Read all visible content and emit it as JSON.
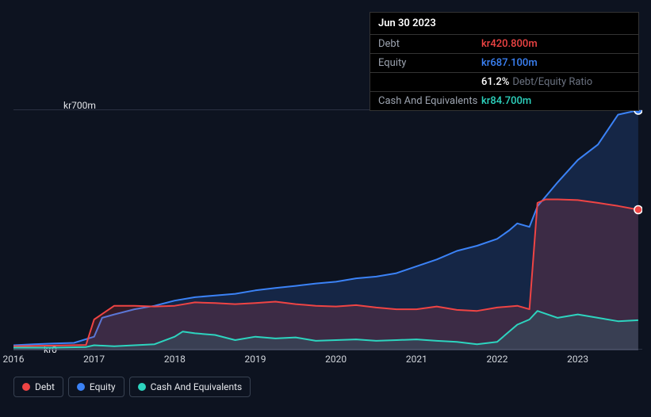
{
  "tooltip": {
    "date": "Jun 30 2023",
    "rows": [
      {
        "label": "Debt",
        "value": "kr420.800m",
        "color": "#ef4444"
      },
      {
        "label": "Equity",
        "value": "kr687.100m",
        "color": "#3b82f6"
      },
      {
        "label": "",
        "value": "61.2%",
        "extra": "Debt/Equity Ratio",
        "color": "#ffffff"
      },
      {
        "label": "Cash And Equivalents",
        "value": "kr84.700m",
        "color": "#2dd4bf"
      }
    ]
  },
  "chart": {
    "type": "area",
    "background": "#0d1320",
    "grid_color": "#2a3142",
    "y_axis": {
      "top_label": "kr700m",
      "bottom_label": "kr0",
      "min": 0,
      "max": 700
    },
    "x_axis": {
      "min": 2016,
      "max": 2023.8,
      "ticks": [
        "2016",
        "2017",
        "2018",
        "2019",
        "2020",
        "2021",
        "2022",
        "2023"
      ]
    },
    "series": [
      {
        "name": "Equity",
        "color": "#3b82f6",
        "fill": "rgba(59,130,246,0.18)",
        "z": 1,
        "data": [
          [
            2016.0,
            15
          ],
          [
            2016.25,
            18
          ],
          [
            2016.5,
            20
          ],
          [
            2016.75,
            22
          ],
          [
            2017.0,
            40
          ],
          [
            2017.1,
            95
          ],
          [
            2017.25,
            105
          ],
          [
            2017.5,
            120
          ],
          [
            2017.75,
            130
          ],
          [
            2018.0,
            145
          ],
          [
            2018.25,
            155
          ],
          [
            2018.5,
            160
          ],
          [
            2018.75,
            165
          ],
          [
            2019.0,
            175
          ],
          [
            2019.25,
            182
          ],
          [
            2019.5,
            188
          ],
          [
            2019.75,
            195
          ],
          [
            2020.0,
            200
          ],
          [
            2020.25,
            210
          ],
          [
            2020.5,
            215
          ],
          [
            2020.75,
            225
          ],
          [
            2021.0,
            245
          ],
          [
            2021.25,
            265
          ],
          [
            2021.5,
            290
          ],
          [
            2021.75,
            305
          ],
          [
            2022.0,
            325
          ],
          [
            2022.15,
            350
          ],
          [
            2022.25,
            370
          ],
          [
            2022.4,
            360
          ],
          [
            2022.5,
            420
          ],
          [
            2022.75,
            490
          ],
          [
            2023.0,
            555
          ],
          [
            2023.25,
            600
          ],
          [
            2023.5,
            687
          ],
          [
            2023.75,
            700
          ]
        ]
      },
      {
        "name": "Debt",
        "color": "#ef4444",
        "fill": "rgba(239,68,68,0.18)",
        "z": 2,
        "data": [
          [
            2016.0,
            12
          ],
          [
            2016.5,
            14
          ],
          [
            2016.9,
            16
          ],
          [
            2017.0,
            90
          ],
          [
            2017.25,
            130
          ],
          [
            2017.5,
            130
          ],
          [
            2017.75,
            128
          ],
          [
            2018.0,
            130
          ],
          [
            2018.25,
            140
          ],
          [
            2018.5,
            138
          ],
          [
            2018.75,
            135
          ],
          [
            2019.0,
            138
          ],
          [
            2019.25,
            142
          ],
          [
            2019.5,
            135
          ],
          [
            2019.75,
            130
          ],
          [
            2020.0,
            128
          ],
          [
            2020.25,
            132
          ],
          [
            2020.5,
            125
          ],
          [
            2020.75,
            120
          ],
          [
            2021.0,
            120
          ],
          [
            2021.25,
            128
          ],
          [
            2021.5,
            118
          ],
          [
            2021.75,
            115
          ],
          [
            2022.0,
            125
          ],
          [
            2022.25,
            130
          ],
          [
            2022.4,
            120
          ],
          [
            2022.5,
            430
          ],
          [
            2022.6,
            440
          ],
          [
            2022.75,
            440
          ],
          [
            2023.0,
            438
          ],
          [
            2023.25,
            430
          ],
          [
            2023.5,
            421
          ],
          [
            2023.75,
            410
          ]
        ]
      },
      {
        "name": "Cash And Equivalents",
        "color": "#2dd4bf",
        "fill": "rgba(45,212,191,0.12)",
        "z": 3,
        "data": [
          [
            2016.0,
            8
          ],
          [
            2016.5,
            8
          ],
          [
            2016.9,
            10
          ],
          [
            2017.0,
            15
          ],
          [
            2017.25,
            12
          ],
          [
            2017.5,
            15
          ],
          [
            2017.75,
            18
          ],
          [
            2018.0,
            40
          ],
          [
            2018.1,
            55
          ],
          [
            2018.25,
            50
          ],
          [
            2018.5,
            45
          ],
          [
            2018.75,
            30
          ],
          [
            2019.0,
            40
          ],
          [
            2019.25,
            35
          ],
          [
            2019.5,
            38
          ],
          [
            2019.75,
            28
          ],
          [
            2020.0,
            30
          ],
          [
            2020.25,
            32
          ],
          [
            2020.5,
            28
          ],
          [
            2020.75,
            30
          ],
          [
            2021.0,
            32
          ],
          [
            2021.25,
            28
          ],
          [
            2021.5,
            25
          ],
          [
            2021.75,
            18
          ],
          [
            2022.0,
            25
          ],
          [
            2022.25,
            75
          ],
          [
            2022.4,
            90
          ],
          [
            2022.5,
            115
          ],
          [
            2022.75,
            95
          ],
          [
            2023.0,
            105
          ],
          [
            2023.25,
            95
          ],
          [
            2023.5,
            85
          ],
          [
            2023.75,
            88
          ]
        ]
      }
    ],
    "markers": [
      {
        "series": "Equity",
        "x": 2023.75,
        "y": 700,
        "color": "#3b82f6"
      },
      {
        "series": "Debt",
        "x": 2023.75,
        "y": 410,
        "color": "#ef4444"
      }
    ]
  },
  "legend": [
    {
      "label": "Debt",
      "color": "#ef4444"
    },
    {
      "label": "Equity",
      "color": "#3b82f6"
    },
    {
      "label": "Cash And Equivalents",
      "color": "#2dd4bf"
    }
  ]
}
